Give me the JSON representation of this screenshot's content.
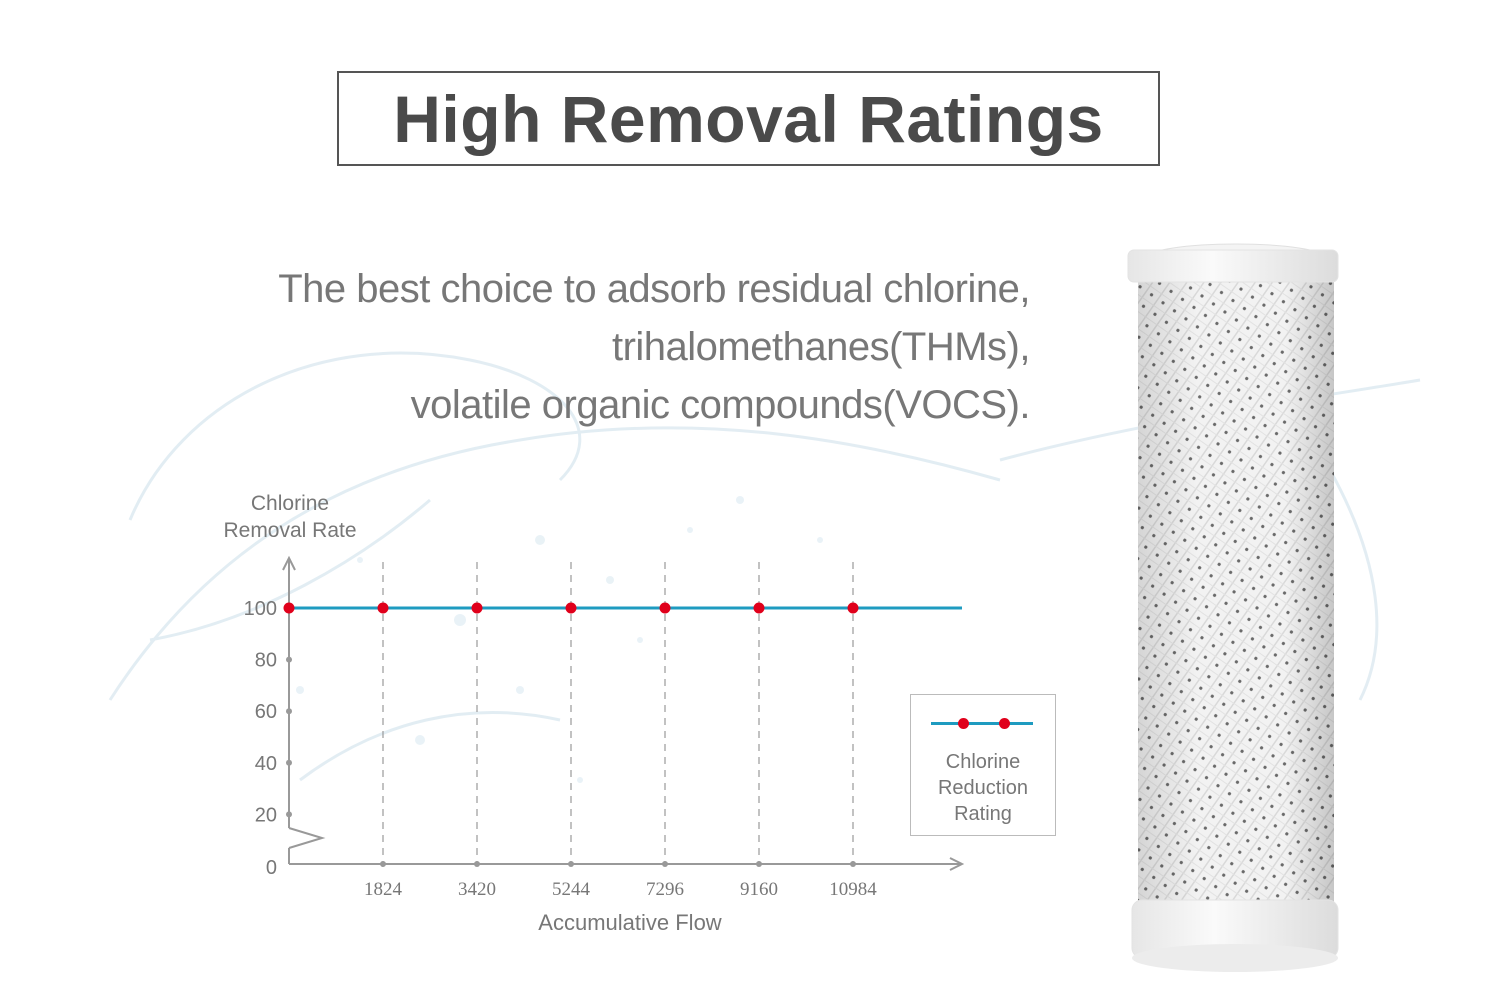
{
  "heading": "High Removal Ratings",
  "subtitle_lines": [
    "The best choice to adsorb residual chlorine,",
    "trihalomethanes(THMs),",
    "volatile organic compounds(VOCS)."
  ],
  "chart_data": {
    "type": "line",
    "ylabel_lines": [
      "Chlorine",
      "Removal Rate"
    ],
    "xlabel": "Accumulative Flow",
    "x_ticks": [
      "1824",
      "3420",
      "5244",
      "7296",
      "9160",
      "10984"
    ],
    "y_ticks": [
      0,
      20,
      40,
      60,
      80,
      100
    ],
    "ylim": [
      0,
      100
    ],
    "axis_break": true,
    "grid": "vertical dashed",
    "series": [
      {
        "name_lines": [
          "Chlorine",
          "Reduction",
          "Rating"
        ],
        "x": [
          0,
          1824,
          3420,
          5244,
          7296,
          9160,
          10984
        ],
        "values": [
          100,
          100,
          100,
          100,
          100,
          100,
          100
        ],
        "line_color": "#1e9bc0",
        "marker_color": "#e0001b"
      }
    ],
    "legend": "bottom-right"
  },
  "colors": {
    "text": "#4a4a4a",
    "muted": "#777777",
    "axis": "#999999",
    "line": "#1e9bc0",
    "marker": "#e0001b"
  }
}
